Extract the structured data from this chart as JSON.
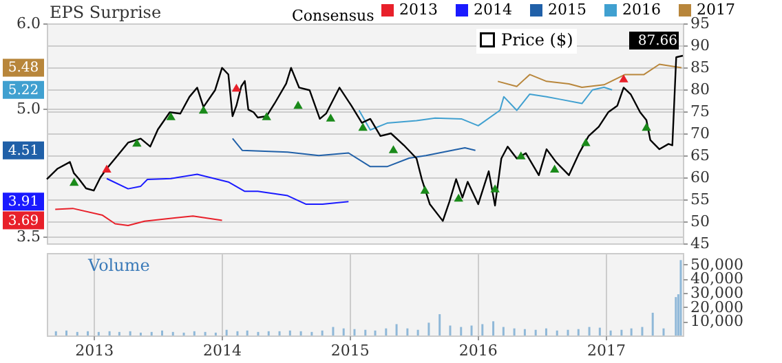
{
  "chart_data": [
    {
      "type": "line",
      "legend_title": "Consensus",
      "legend": "top",
      "grid": true,
      "tick_labels": "y",
      "annotations": [
        "EPS Surprise",
        "5.48",
        "5.22",
        "4.51",
        "3.91",
        "3.69"
      ],
      "xlim": [
        "2012-08-20",
        "2017-08-09"
      ],
      "xticks": [
        {
          "value": "2013-01-01",
          "label": null
        },
        {
          "value": "2014-01-01",
          "label": null
        },
        {
          "value": "2015-01-01",
          "label": null
        },
        {
          "value": "2016-01-01",
          "label": null
        },
        {
          "value": "2017-01-01",
          "label": null
        }
      ],
      "ylim": [
        3.42,
        6.0
      ],
      "yticks": [
        {
          "value": 3.5,
          "label": "3.5"
        },
        {
          "value": 5,
          "label": "5.0"
        },
        {
          "value": 6,
          "label": "6.0"
        }
      ],
      "y2lim": [
        45,
        95
      ],
      "y2ticks": [
        45,
        50,
        55,
        60,
        65,
        70,
        75,
        80,
        85,
        90,
        95
      ],
      "series": [
        {
          "name": "2013",
          "color": "#e8202a",
          "x": [
            "2012-09-13",
            "2012-11-02",
            "2013-01-26",
            "2013-03-03",
            "2013-04-09",
            "2013-05-26",
            "2013-08-24",
            "2013-10-11",
            "2014-01-02"
          ],
          "values": [
            3.82,
            3.83,
            3.75,
            3.65,
            3.63,
            3.68,
            3.72,
            3.74,
            3.69
          ]
        },
        {
          "name": "2014",
          "color": "#1a1aff",
          "x": [
            "2013-02-07",
            "2013-04-09",
            "2013-05-15",
            "2013-06-03",
            "2013-08-09",
            "2013-10-23",
            "2014-01-20",
            "2014-03-08",
            "2014-04-14",
            "2014-07-08",
            "2014-08-29",
            "2014-10-16",
            "2014-12-29"
          ],
          "values": [
            4.18,
            4.06,
            4.09,
            4.17,
            4.18,
            4.23,
            4.14,
            4.03,
            4.03,
            3.98,
            3.88,
            3.88,
            3.91
          ]
        },
        {
          "name": "2015",
          "color": "#2060a8",
          "x": [
            "2014-02-01",
            "2014-03-01",
            "2014-07-08",
            "2014-10-05",
            "2014-12-29",
            "2015-03-01",
            "2015-04-18",
            "2015-06-20",
            "2015-08-07",
            "2015-11-26",
            "2015-12-26"
          ],
          "values": [
            4.65,
            4.51,
            4.49,
            4.45,
            4.48,
            4.32,
            4.32,
            4.42,
            4.45,
            4.54,
            4.51
          ]
        },
        {
          "name": "2016",
          "color": "#40a0d0",
          "x": [
            "2015-01-28",
            "2015-03-01",
            "2015-04-18",
            "2015-07-11",
            "2015-09-02",
            "2015-11-16",
            "2016-01-03",
            "2016-03-05",
            "2016-03-16",
            "2016-04-22",
            "2016-05-29",
            "2016-07-16",
            "2016-08-23",
            "2016-10-25",
            "2016-11-24",
            "2016-12-27",
            "2017-01-19"
          ],
          "values": [
            4.98,
            4.75,
            4.83,
            4.86,
            4.89,
            4.88,
            4.8,
            4.98,
            5.14,
            4.98,
            5.17,
            5.14,
            5.11,
            5.06,
            5.22,
            5.25,
            5.22
          ]
        },
        {
          "name": "2017",
          "color": "#b8863b",
          "x": [
            "2016-02-28",
            "2016-04-22",
            "2016-05-29",
            "2016-07-16",
            "2016-09-18",
            "2016-10-25",
            "2016-12-27",
            "2017-02-25",
            "2017-04-20",
            "2017-06-03",
            "2017-08-05"
          ],
          "values": [
            5.32,
            5.26,
            5.4,
            5.32,
            5.29,
            5.25,
            5.28,
            5.4,
            5.4,
            5.52,
            5.48
          ]
        },
        {
          "name": "Price ($)",
          "axis": "y2",
          "color": "#000000",
          "x": [
            "2012-08-20",
            "2012-09-20",
            "2012-10-25",
            "2012-11-05",
            "2012-11-20",
            "2012-12-10",
            "2013-01-01",
            "2013-01-20",
            "2013-02-07",
            "2013-03-03",
            "2013-04-09",
            "2013-05-15",
            "2013-06-11",
            "2013-07-03",
            "2013-08-06",
            "2013-09-05",
            "2013-10-01",
            "2013-10-23",
            "2013-11-10",
            "2013-12-13",
            "2014-01-02",
            "2014-01-20",
            "2014-02-01",
            "2014-02-12",
            "2014-02-26",
            "2014-03-08",
            "2014-03-18",
            "2014-04-02",
            "2014-04-14",
            "2014-05-09",
            "2014-06-01",
            "2014-07-04",
            "2014-07-18",
            "2014-08-10",
            "2014-09-09",
            "2014-10-08",
            "2014-10-26",
            "2014-12-03",
            "2015-01-06",
            "2015-02-05",
            "2015-03-01",
            "2015-03-30",
            "2015-04-29",
            "2015-06-05",
            "2015-07-11",
            "2015-07-26",
            "2015-08-18",
            "2015-09-24",
            "2015-10-13",
            "2015-11-01",
            "2015-11-19",
            "2015-12-04",
            "2016-01-03",
            "2016-02-02",
            "2016-02-20",
            "2016-03-09",
            "2016-03-27",
            "2016-04-22",
            "2016-05-18",
            "2016-06-24",
            "2016-07-16",
            "2016-08-12",
            "2016-09-18",
            "2016-10-17",
            "2016-11-13",
            "2016-12-12",
            "2017-01-08",
            "2017-02-03",
            "2017-02-21",
            "2017-03-13",
            "2017-04-09",
            "2017-04-27",
            "2017-05-08",
            "2017-06-03",
            "2017-06-29",
            "2017-07-10",
            "2017-07-21",
            "2017-08-09"
          ],
          "values": [
            59.6,
            62.0,
            63.5,
            61.0,
            59.6,
            57.5,
            57.0,
            60.0,
            62.0,
            64.3,
            67.9,
            68.8,
            67.0,
            70.9,
            74.8,
            74.5,
            78.3,
            80.4,
            76.0,
            79.8,
            84.9,
            83.4,
            73.9,
            76.3,
            80.7,
            81.9,
            75.4,
            74.8,
            73.6,
            73.9,
            76.8,
            81.3,
            84.9,
            80.4,
            79.8,
            73.3,
            74.5,
            80.4,
            76.3,
            72.4,
            73.3,
            69.4,
            70.0,
            67.3,
            64.3,
            59.6,
            53.9,
            50.1,
            54.5,
            59.6,
            55.4,
            59.0,
            53.9,
            61.4,
            53.6,
            64.3,
            67.0,
            64.3,
            65.5,
            60.5,
            66.4,
            63.5,
            60.5,
            65.5,
            69.4,
            71.5,
            74.8,
            76.3,
            80.4,
            78.9,
            74.8,
            73.0,
            68.5,
            66.4,
            67.6,
            67.3,
            87.3,
            87.66
          ],
          "value_labels": [
            null,
            null,
            null,
            null,
            null,
            null,
            null,
            null,
            null,
            null,
            null,
            null,
            null,
            null,
            null,
            null,
            null,
            null,
            null,
            null,
            null,
            null,
            null,
            null,
            null,
            null,
            null,
            null,
            null,
            null,
            null,
            null,
            null,
            null,
            null,
            null,
            null,
            null,
            null,
            null,
            null,
            null,
            null,
            null,
            null,
            null,
            null,
            null,
            null,
            null,
            null,
            null,
            null,
            null,
            null,
            null,
            null,
            null,
            null,
            null,
            null,
            null,
            null,
            null,
            null,
            null,
            null,
            null,
            null,
            null,
            null,
            null,
            null,
            null,
            null,
            null,
            null,
            "87.66"
          ]
        },
        {
          "type": "scatter",
          "marker": "triangle",
          "axis": "y2",
          "color": "#1a8a1a",
          "x": [
            "2012-11-06",
            "2013-05-04",
            "2013-08-09",
            "2013-11-10",
            "2014-05-09",
            "2014-08-07",
            "2014-11-08",
            "2015-02-08",
            "2015-05-06",
            "2015-08-04",
            "2015-11-08",
            "2016-02-20",
            "2016-05-04",
            "2016-08-08",
            "2016-11-05",
            "2017-04-27"
          ],
          "values": [
            59,
            67.9,
            73.9,
            75.4,
            73.9,
            76.5,
            73.6,
            71.5,
            66.4,
            57.2,
            55.4,
            57.5,
            65,
            62,
            68,
            71.5
          ]
        },
        {
          "type": "scatter",
          "marker": "triangle",
          "axis": "y2",
          "color": "#e8202a",
          "x": [
            "2013-02-07",
            "2014-02-12",
            "2017-02-21"
          ],
          "values": [
            62,
            80.4,
            82.5
          ]
        }
      ]
    },
    {
      "type": "bar",
      "grid": "x",
      "annotations": [
        "Volume"
      ],
      "xlim": [
        "2012-08-20",
        "2017-08-09"
      ],
      "xticks": [
        {
          "value": "2013-01-01",
          "label": "2013"
        },
        {
          "value": "2014-01-01",
          "label": "2014"
        },
        {
          "value": "2015-01-01",
          "label": "2015"
        },
        {
          "value": "2016-01-01",
          "label": "2016"
        },
        {
          "value": "2017-01-01",
          "label": "2017"
        }
      ],
      "ylim": [
        0,
        58000
      ],
      "yticks": [
        {
          "value": 10000,
          "label": "10,000"
        },
        {
          "value": 20000,
          "label": "20,000"
        },
        {
          "value": 30000,
          "label": "30,000"
        },
        {
          "value": 40000,
          "label": "40,000"
        },
        {
          "value": 50000,
          "label": "50,000"
        }
      ],
      "color": "#8fb8d8",
      "x": [
        "2012-09-15",
        "2012-10-15",
        "2012-11-15",
        "2012-12-15",
        "2013-01-15",
        "2013-02-15",
        "2013-03-15",
        "2013-04-15",
        "2013-05-15",
        "2013-06-15",
        "2013-07-15",
        "2013-08-15",
        "2013-09-15",
        "2013-10-15",
        "2013-11-15",
        "2013-12-15",
        "2014-01-15",
        "2014-02-15",
        "2014-03-15",
        "2014-04-15",
        "2014-05-15",
        "2014-06-15",
        "2014-07-15",
        "2014-08-15",
        "2014-09-15",
        "2014-10-15",
        "2014-11-15",
        "2014-12-15",
        "2015-01-15",
        "2015-02-15",
        "2015-03-15",
        "2015-04-15",
        "2015-05-15",
        "2015-06-15",
        "2015-07-15",
        "2015-08-15",
        "2015-09-15",
        "2015-10-15",
        "2015-11-15",
        "2015-12-15",
        "2016-01-15",
        "2016-02-15",
        "2016-03-15",
        "2016-04-15",
        "2016-05-15",
        "2016-06-15",
        "2016-07-15",
        "2016-08-15",
        "2016-09-15",
        "2016-10-15",
        "2016-11-15",
        "2016-12-15",
        "2017-01-15",
        "2017-02-15",
        "2017-03-15",
        "2017-04-15",
        "2017-05-15",
        "2017-06-15",
        "2017-07-20",
        "2017-07-27",
        "2017-08-03"
      ],
      "values": [
        3000,
        3500,
        2500,
        3000,
        2500,
        3000,
        2500,
        3000,
        2000,
        2500,
        3500,
        2500,
        2000,
        3000,
        2500,
        2000,
        4000,
        3000,
        3500,
        2500,
        3000,
        3000,
        3500,
        3000,
        2500,
        3500,
        6000,
        5000,
        4500,
        4000,
        3500,
        5000,
        8000,
        5000,
        4000,
        9000,
        15000,
        7000,
        6000,
        7000,
        8000,
        10000,
        6000,
        5000,
        4500,
        4000,
        5000,
        3500,
        4000,
        4500,
        6000,
        5500,
        3500,
        4000,
        5000,
        6000,
        16000,
        5000,
        27000,
        29000,
        53000
      ]
    }
  ]
}
